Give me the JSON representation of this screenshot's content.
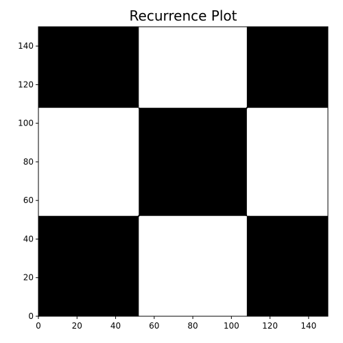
{
  "chart_data": {
    "type": "heatmap",
    "title": "Recurrence Plot",
    "xlabel": "",
    "ylabel": "",
    "xlim": [
      0,
      150
    ],
    "ylim": [
      0,
      150
    ],
    "x_ticks": [
      0,
      20,
      40,
      60,
      80,
      100,
      120,
      140
    ],
    "y_ticks": [
      0,
      20,
      40,
      60,
      80,
      100,
      120,
      140
    ],
    "grid": false,
    "legend": "none",
    "colors": {
      "recurrent": "#000000",
      "non_recurrent": "#ffffff"
    },
    "matrix_size": [
      150,
      150
    ],
    "recurrent_regions": [
      {
        "x": [
          0,
          52
        ],
        "y": [
          0,
          52
        ]
      },
      {
        "x": [
          52,
          108
        ],
        "y": [
          52,
          108
        ]
      },
      {
        "x": [
          108,
          150
        ],
        "y": [
          108,
          150
        ]
      },
      {
        "x": [
          0,
          52
        ],
        "y": [
          108,
          150
        ]
      },
      {
        "x": [
          108,
          150
        ],
        "y": [
          0,
          52
        ]
      }
    ],
    "recurrent_lines": [
      {
        "from": [
          0,
          0
        ],
        "to": [
          150,
          150
        ]
      },
      {
        "from": [
          52,
          108
        ],
        "to": [
          108,
          52
        ]
      },
      {
        "from": [
          0,
          109
        ],
        "to": [
          52,
          109
        ]
      },
      {
        "from": [
          109,
          0
        ],
        "to": [
          109,
          52
        ]
      }
    ]
  }
}
